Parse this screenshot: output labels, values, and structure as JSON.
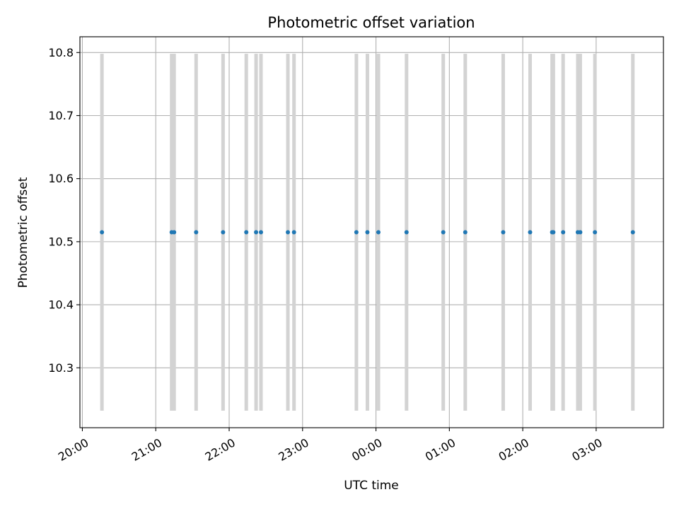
{
  "chart_data": {
    "type": "scatter",
    "title": "Photometric offset variation",
    "xlabel": "UTC time",
    "ylabel": "Photometric offset",
    "x_axis_type": "time",
    "xlim": [
      "2000-01-01T19:58:00",
      "2000-01-02T03:55:00"
    ],
    "ylim": [
      10.205,
      10.825
    ],
    "x_ticks": [
      {
        "value": "2000-01-01T20:00:00",
        "label": "20:00"
      },
      {
        "value": "2000-01-01T21:00:00",
        "label": "21:00"
      },
      {
        "value": "2000-01-01T22:00:00",
        "label": "22:00"
      },
      {
        "value": "2000-01-01T23:00:00",
        "label": "23:00"
      },
      {
        "value": "2000-01-02T00:00:00",
        "label": "00:00"
      },
      {
        "value": "2000-01-02T01:00:00",
        "label": "01:00"
      },
      {
        "value": "2000-01-02T02:00:00",
        "label": "02:00"
      },
      {
        "value": "2000-01-02T03:00:00",
        "label": "03:00"
      }
    ],
    "y_ticks": [
      {
        "value": 10.3,
        "label": "10.3"
      },
      {
        "value": 10.4,
        "label": "10.4"
      },
      {
        "value": 10.5,
        "label": "10.5"
      },
      {
        "value": 10.6,
        "label": "10.6"
      },
      {
        "value": 10.7,
        "label": "10.7"
      },
      {
        "value": 10.8,
        "label": "10.8"
      }
    ],
    "grid": true,
    "band_range": [
      10.232,
      10.798
    ],
    "series": [
      {
        "x": [
          "2000-01-01T20:16:00",
          "2000-01-01T21:13:00",
          "2000-01-01T21:15:00",
          "2000-01-01T21:33:00",
          "2000-01-01T21:55:00",
          "2000-01-01T22:14:00",
          "2000-01-01T22:22:00",
          "2000-01-01T22:26:00",
          "2000-01-01T22:48:00",
          "2000-01-01T22:53:00",
          "2000-01-01T23:44:00",
          "2000-01-01T23:53:00",
          "2000-01-02T00:02:00",
          "2000-01-02T00:25:00",
          "2000-01-02T00:55:00",
          "2000-01-02T01:13:00",
          "2000-01-02T01:44:00",
          "2000-01-02T02:06:00",
          "2000-01-02T02:24:00",
          "2000-01-02T02:25:00",
          "2000-01-02T02:33:00",
          "2000-01-02T02:45:00",
          "2000-01-02T02:47:00",
          "2000-01-02T02:59:00",
          "2000-01-02T03:30:00"
        ],
        "y": [
          10.515,
          10.515,
          10.515,
          10.515,
          10.515,
          10.515,
          10.515,
          10.515,
          10.515,
          10.515,
          10.515,
          10.515,
          10.515,
          10.515,
          10.515,
          10.515,
          10.515,
          10.515,
          10.515,
          10.515,
          10.515,
          10.515,
          10.515,
          10.515,
          10.515
        ]
      }
    ],
    "colors": {
      "points": "#1f77b4",
      "bands": "#d3d3d3",
      "grid": "#b0b0b0"
    }
  }
}
